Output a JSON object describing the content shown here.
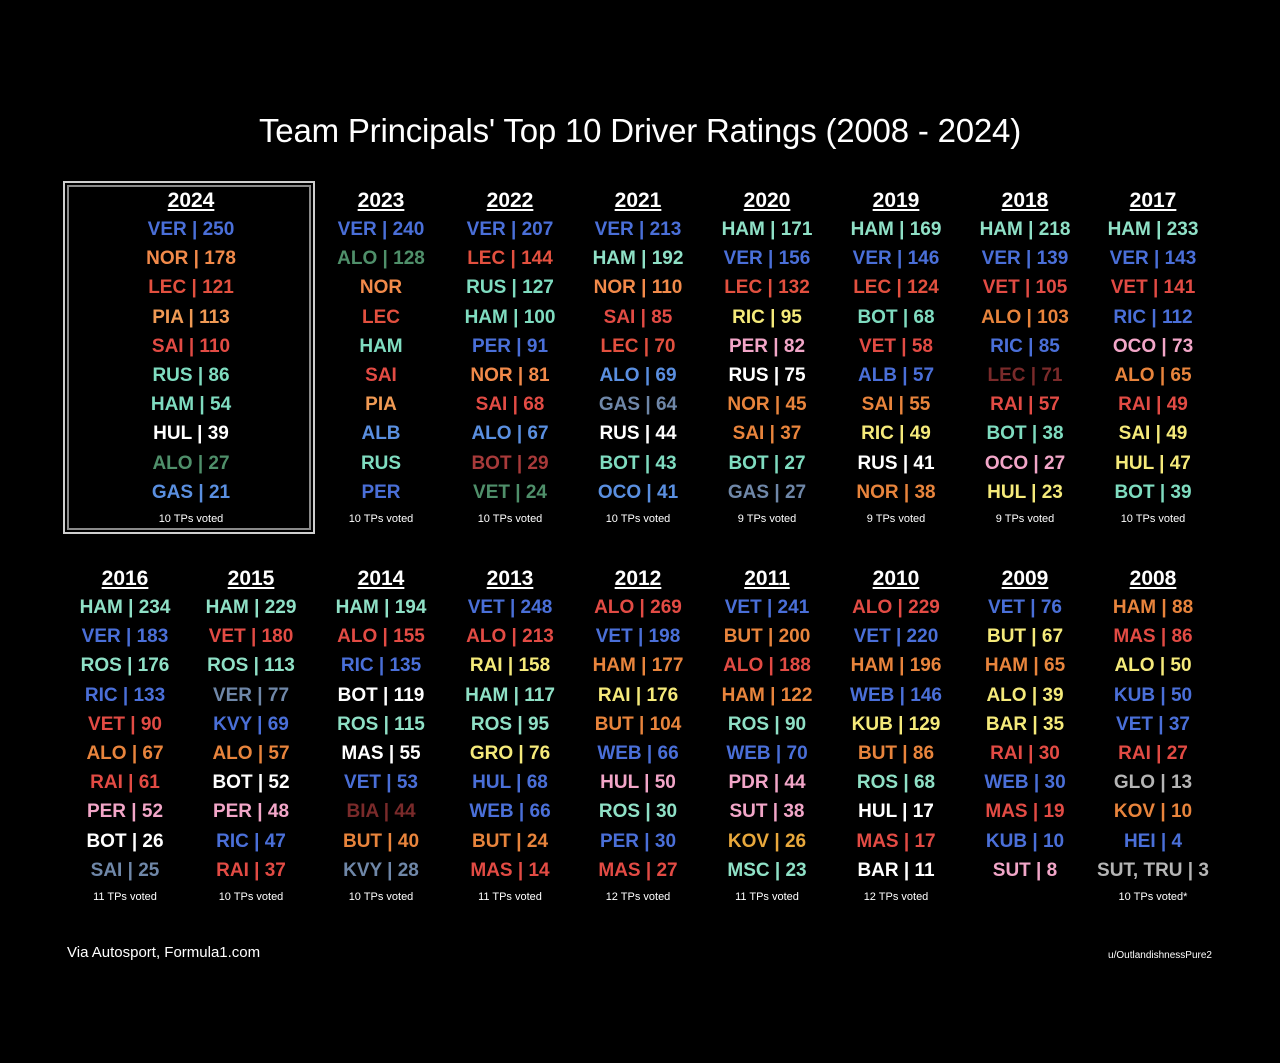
{
  "title": "Team Principals' Top 10 Driver Ratings (2008 - 2024)",
  "source": "Via Autosport, Formula1.com",
  "credit": "u/OutlandishnessPure2",
  "highlighted_year": "2024",
  "colors": {
    "VER": "#4a6fd8",
    "NOR": "#f28a4a",
    "LEC": "#e2503f",
    "PIA": "#f09a54",
    "SAI": "#e24b44",
    "RUS": "#7fdcc0",
    "HAM": "#7fdcc0",
    "HUL": "#ffffff",
    "ALO": "#4f8f6a",
    "GAS": "#5a8fe0",
    "ALB": "#5a8fe0",
    "PER": "#4a6fd8",
    "BOT": "#a83a3a",
    "OCO": "#6a8ee0",
    "RIC": "#4a6fd8",
    "VET": "#4f8f6a",
    "white": "#ffffff",
    "yellow": "#f5ea7a",
    "pink": "#f2a6c8",
    "orange": "#e8843c",
    "red": "#e24b44",
    "teal": "#8fe0c6",
    "blue": "#4a6fd8",
    "slate": "#6f87a8",
    "darkred": "#7a2a2a",
    "lightblue": "#8aa6d8",
    "grey": "#b5b5b5",
    "purple": "#a88be0"
  },
  "columns": [
    {
      "year": "2024",
      "voted": "10 TPs voted",
      "entries": [
        {
          "t": "VER | 250",
          "c": "#4a6fd8"
        },
        {
          "t": "NOR | 178",
          "c": "#f28a4a"
        },
        {
          "t": "LEC | 121",
          "c": "#e2503f"
        },
        {
          "t": "PIA | 113",
          "c": "#f09a54"
        },
        {
          "t": "SAI | 110",
          "c": "#e24b44"
        },
        {
          "t": "RUS | 86",
          "c": "#7fdcc0"
        },
        {
          "t": "HAM | 54",
          "c": "#7fdcc0"
        },
        {
          "t": "HUL | 39",
          "c": "#ffffff"
        },
        {
          "t": "ALO | 27",
          "c": "#4f8f6a"
        },
        {
          "t": "GAS | 21",
          "c": "#5a8fe0"
        }
      ]
    },
    {
      "year": "2023",
      "voted": "10 TPs voted",
      "entries": [
        {
          "t": "VER | 240",
          "c": "#4a6fd8"
        },
        {
          "t": "ALO | 128",
          "c": "#4f8f6a"
        },
        {
          "t": "NOR",
          "c": "#f28a4a"
        },
        {
          "t": "LEC",
          "c": "#e2503f"
        },
        {
          "t": "HAM",
          "c": "#7fdcc0"
        },
        {
          "t": "SAI",
          "c": "#e24b44"
        },
        {
          "t": "PIA",
          "c": "#f09a54"
        },
        {
          "t": "ALB",
          "c": "#5a8fe0"
        },
        {
          "t": "RUS",
          "c": "#7fdcc0"
        },
        {
          "t": "PER",
          "c": "#4a6fd8"
        }
      ]
    },
    {
      "year": "2022",
      "voted": "10 TPs voted",
      "entries": [
        {
          "t": "VER | 207",
          "c": "#4a6fd8"
        },
        {
          "t": "LEC | 144",
          "c": "#e2503f"
        },
        {
          "t": "RUS | 127",
          "c": "#7fdcc0"
        },
        {
          "t": "HAM | 100",
          "c": "#7fdcc0"
        },
        {
          "t": "PER | 91",
          "c": "#4a6fd8"
        },
        {
          "t": "NOR | 81",
          "c": "#f28a4a"
        },
        {
          "t": "SAI | 68",
          "c": "#e24b44"
        },
        {
          "t": "ALO | 67",
          "c": "#5a8fe0"
        },
        {
          "t": "BOT | 29",
          "c": "#a83a3a"
        },
        {
          "t": "VET | 24",
          "c": "#4f8f6a"
        }
      ]
    },
    {
      "year": "2021",
      "voted": "10 TPs voted",
      "entries": [
        {
          "t": "VER | 213",
          "c": "#4a6fd8"
        },
        {
          "t": "HAM | 192",
          "c": "#8fe0c6"
        },
        {
          "t": "NOR | 110",
          "c": "#f28a4a"
        },
        {
          "t": "SAI | 85",
          "c": "#e24b44"
        },
        {
          "t": "LEC | 70",
          "c": "#e2503f"
        },
        {
          "t": "ALO | 69",
          "c": "#5a8fe0"
        },
        {
          "t": "GAS | 64",
          "c": "#6f87a8"
        },
        {
          "t": "RUS | 44",
          "c": "#ffffff"
        },
        {
          "t": "BOT | 43",
          "c": "#7fdcc0"
        },
        {
          "t": "OCO | 41",
          "c": "#5a8fe0"
        }
      ]
    },
    {
      "year": "2020",
      "voted": "9 TPs voted",
      "entries": [
        {
          "t": "HAM | 171",
          "c": "#8fe0c6"
        },
        {
          "t": "VER | 156",
          "c": "#4a6fd8"
        },
        {
          "t": "LEC | 132",
          "c": "#e2503f"
        },
        {
          "t": "RIC | 95",
          "c": "#f5ea7a"
        },
        {
          "t": "PER | 82",
          "c": "#f2a6c8"
        },
        {
          "t": "RUS | 75",
          "c": "#ffffff"
        },
        {
          "t": "NOR | 45",
          "c": "#e8843c"
        },
        {
          "t": "SAI | 37",
          "c": "#e8843c"
        },
        {
          "t": "BOT | 27",
          "c": "#7fdcc0"
        },
        {
          "t": "GAS | 27",
          "c": "#6f87a8"
        }
      ]
    },
    {
      "year": "2019",
      "voted": "9 TPs voted",
      "entries": [
        {
          "t": "HAM | 169",
          "c": "#8fe0c6"
        },
        {
          "t": "VER | 146",
          "c": "#4a6fd8"
        },
        {
          "t": "LEC | 124",
          "c": "#e2503f"
        },
        {
          "t": "BOT | 68",
          "c": "#7fdcc0"
        },
        {
          "t": "VET | 58",
          "c": "#e24b44"
        },
        {
          "t": "ALB | 57",
          "c": "#4a6fd8"
        },
        {
          "t": "SAI | 55",
          "c": "#e8843c"
        },
        {
          "t": "RIC | 49",
          "c": "#f5ea7a"
        },
        {
          "t": "RUS | 41",
          "c": "#ffffff"
        },
        {
          "t": "NOR | 38",
          "c": "#e8843c"
        }
      ]
    },
    {
      "year": "2018",
      "voted": "9 TPs voted",
      "entries": [
        {
          "t": "HAM | 218",
          "c": "#8fe0c6"
        },
        {
          "t": "VER | 139",
          "c": "#4a6fd8"
        },
        {
          "t": "VET | 105",
          "c": "#e24b44"
        },
        {
          "t": "ALO | 103",
          "c": "#e8843c"
        },
        {
          "t": "RIC | 85",
          "c": "#4a6fd8"
        },
        {
          "t": "LEC | 71",
          "c": "#7a2a2a"
        },
        {
          "t": "RAI | 57",
          "c": "#e24b44"
        },
        {
          "t": "BOT | 38",
          "c": "#7fdcc0"
        },
        {
          "t": "OCO | 27",
          "c": "#f2a6c8"
        },
        {
          "t": "HUL | 23",
          "c": "#f5ea7a"
        }
      ]
    },
    {
      "year": "2017",
      "voted": "10 TPs voted",
      "entries": [
        {
          "t": "HAM | 233",
          "c": "#8fe0c6"
        },
        {
          "t": "VER | 143",
          "c": "#4a6fd8"
        },
        {
          "t": "VET | 141",
          "c": "#e24b44"
        },
        {
          "t": "RIC | 112",
          "c": "#4a6fd8"
        },
        {
          "t": "OCO | 73",
          "c": "#f2a6c8"
        },
        {
          "t": "ALO | 65",
          "c": "#e8843c"
        },
        {
          "t": "RAI | 49",
          "c": "#e24b44"
        },
        {
          "t": "SAI | 49",
          "c": "#f5ea7a"
        },
        {
          "t": "HUL | 47",
          "c": "#f5ea7a"
        },
        {
          "t": "BOT | 39",
          "c": "#7fdcc0"
        }
      ]
    },
    {
      "year": "2016",
      "voted": "11 TPs voted",
      "entries": [
        {
          "t": "HAM | 234",
          "c": "#8fe0c6"
        },
        {
          "t": "VER | 183",
          "c": "#4a6fd8"
        },
        {
          "t": "ROS | 176",
          "c": "#8fe0c6"
        },
        {
          "t": "RIC | 133",
          "c": "#4a6fd8"
        },
        {
          "t": "VET | 90",
          "c": "#e24b44"
        },
        {
          "t": "ALO | 67",
          "c": "#e8843c"
        },
        {
          "t": "RAI | 61",
          "c": "#e24b44"
        },
        {
          "t": "PER | 52",
          "c": "#f2a6c8"
        },
        {
          "t": "BOT | 26",
          "c": "#ffffff"
        },
        {
          "t": "SAI | 25",
          "c": "#6f87a8"
        }
      ]
    },
    {
      "year": "2015",
      "voted": "10 TPs voted",
      "entries": [
        {
          "t": "HAM | 229",
          "c": "#8fe0c6"
        },
        {
          "t": "VET | 180",
          "c": "#e24b44"
        },
        {
          "t": "ROS | 113",
          "c": "#8fe0c6"
        },
        {
          "t": "VER | 77",
          "c": "#6f87a8"
        },
        {
          "t": "KVY | 69",
          "c": "#4a6fd8"
        },
        {
          "t": "ALO | 57",
          "c": "#e8843c"
        },
        {
          "t": "BOT | 52",
          "c": "#ffffff"
        },
        {
          "t": "PER | 48",
          "c": "#f2a6c8"
        },
        {
          "t": "RIC | 47",
          "c": "#4a6fd8"
        },
        {
          "t": "RAI | 37",
          "c": "#e24b44"
        }
      ]
    },
    {
      "year": "2014",
      "voted": "10 TPs voted",
      "entries": [
        {
          "t": "HAM | 194",
          "c": "#8fe0c6"
        },
        {
          "t": "ALO | 155",
          "c": "#e24b44"
        },
        {
          "t": "RIC | 135",
          "c": "#4a6fd8"
        },
        {
          "t": "BOT | 119",
          "c": "#ffffff"
        },
        {
          "t": "ROS | 115",
          "c": "#8fe0c6"
        },
        {
          "t": "MAS | 55",
          "c": "#ffffff"
        },
        {
          "t": "VET | 53",
          "c": "#4a6fd8"
        },
        {
          "t": "BIA | 44",
          "c": "#7a2a2a"
        },
        {
          "t": "BUT | 40",
          "c": "#e8843c"
        },
        {
          "t": "KVY | 28",
          "c": "#6f87a8"
        }
      ]
    },
    {
      "year": "2013",
      "voted": "11 TPs voted",
      "entries": [
        {
          "t": "VET | 248",
          "c": "#4a6fd8"
        },
        {
          "t": "ALO | 213",
          "c": "#e24b44"
        },
        {
          "t": "RAI | 158",
          "c": "#f5ea7a"
        },
        {
          "t": "HAM | 117",
          "c": "#8fe0c6"
        },
        {
          "t": "ROS | 95",
          "c": "#8fe0c6"
        },
        {
          "t": "GRO | 76",
          "c": "#f5ea7a"
        },
        {
          "t": "HUL | 68",
          "c": "#4a6fd8"
        },
        {
          "t": "WEB | 66",
          "c": "#4a6fd8"
        },
        {
          "t": "BUT | 24",
          "c": "#e8843c"
        },
        {
          "t": "MAS | 14",
          "c": "#e24b44"
        }
      ]
    },
    {
      "year": "2012",
      "voted": "12 TPs voted",
      "entries": [
        {
          "t": "ALO | 269",
          "c": "#e24b44"
        },
        {
          "t": "VET | 198",
          "c": "#4a6fd8"
        },
        {
          "t": "HAM | 177",
          "c": "#e8843c"
        },
        {
          "t": "RAI | 176",
          "c": "#f5ea7a"
        },
        {
          "t": "BUT | 104",
          "c": "#e8843c"
        },
        {
          "t": "WEB | 66",
          "c": "#4a6fd8"
        },
        {
          "t": "HUL | 50",
          "c": "#f2a6c8"
        },
        {
          "t": "ROS | 30",
          "c": "#8fe0c6"
        },
        {
          "t": "PER | 30",
          "c": "#4a6fd8"
        },
        {
          "t": "MAS | 27",
          "c": "#e24b44"
        }
      ]
    },
    {
      "year": "2011",
      "voted": "11 TPs voted",
      "entries": [
        {
          "t": "VET | 241",
          "c": "#4a6fd8"
        },
        {
          "t": "BUT | 200",
          "c": "#e8843c"
        },
        {
          "t": "ALO | 188",
          "c": "#e24b44"
        },
        {
          "t": "HAM | 122",
          "c": "#e8843c"
        },
        {
          "t": "ROS | 90",
          "c": "#8fe0c6"
        },
        {
          "t": "WEB | 70",
          "c": "#4a6fd8"
        },
        {
          "t": "PDR | 44",
          "c": "#f2a6c8"
        },
        {
          "t": "SUT | 38",
          "c": "#f2a6c8"
        },
        {
          "t": "KOV | 26",
          "c": "#e8a83c"
        },
        {
          "t": "MSC | 23",
          "c": "#8fe0c6"
        }
      ]
    },
    {
      "year": "2010",
      "voted": "12 TPs voted",
      "entries": [
        {
          "t": "ALO | 229",
          "c": "#e24b44"
        },
        {
          "t": "VET | 220",
          "c": "#4a6fd8"
        },
        {
          "t": "HAM | 196",
          "c": "#e8843c"
        },
        {
          "t": "WEB | 146",
          "c": "#4a6fd8"
        },
        {
          "t": "KUB | 129",
          "c": "#f5ea7a"
        },
        {
          "t": "BUT | 86",
          "c": "#e8843c"
        },
        {
          "t": "ROS | 68",
          "c": "#8fe0c6"
        },
        {
          "t": "HUL | 17",
          "c": "#ffffff"
        },
        {
          "t": "MAS | 17",
          "c": "#e24b44"
        },
        {
          "t": "BAR | 11",
          "c": "#ffffff"
        }
      ]
    },
    {
      "year": "2009",
      "voted": "",
      "entries": [
        {
          "t": "VET | 76",
          "c": "#4a6fd8"
        },
        {
          "t": "BUT | 67",
          "c": "#f5ea7a"
        },
        {
          "t": "HAM | 65",
          "c": "#e8843c"
        },
        {
          "t": "ALO | 39",
          "c": "#f5ea7a"
        },
        {
          "t": "BAR | 35",
          "c": "#f5ea7a"
        },
        {
          "t": "RAI | 30",
          "c": "#e24b44"
        },
        {
          "t": "WEB | 30",
          "c": "#4a6fd8"
        },
        {
          "t": "MAS | 19",
          "c": "#e24b44"
        },
        {
          "t": "KUB | 10",
          "c": "#4a6fd8"
        },
        {
          "t": "SUT | 8",
          "c": "#f2a6c8"
        }
      ]
    },
    {
      "year": "2008",
      "voted": "10 TPs voted*",
      "entries": [
        {
          "t": "HAM | 88",
          "c": "#e8843c"
        },
        {
          "t": "MAS | 86",
          "c": "#e24b44"
        },
        {
          "t": "ALO | 50",
          "c": "#f5ea7a"
        },
        {
          "t": "KUB | 50",
          "c": "#4a6fd8"
        },
        {
          "t": "VET | 37",
          "c": "#4a6fd8"
        },
        {
          "t": "RAI | 27",
          "c": "#e24b44"
        },
        {
          "t": "GLO | 13",
          "c": "#b5b5b5"
        },
        {
          "t": "KOV | 10",
          "c": "#e8843c"
        },
        {
          "t": "HEI | 4",
          "c": "#4a6fd8"
        },
        {
          "t": "SUT, TRU | 3",
          "c": "#b5b5b5"
        }
      ]
    }
  ]
}
